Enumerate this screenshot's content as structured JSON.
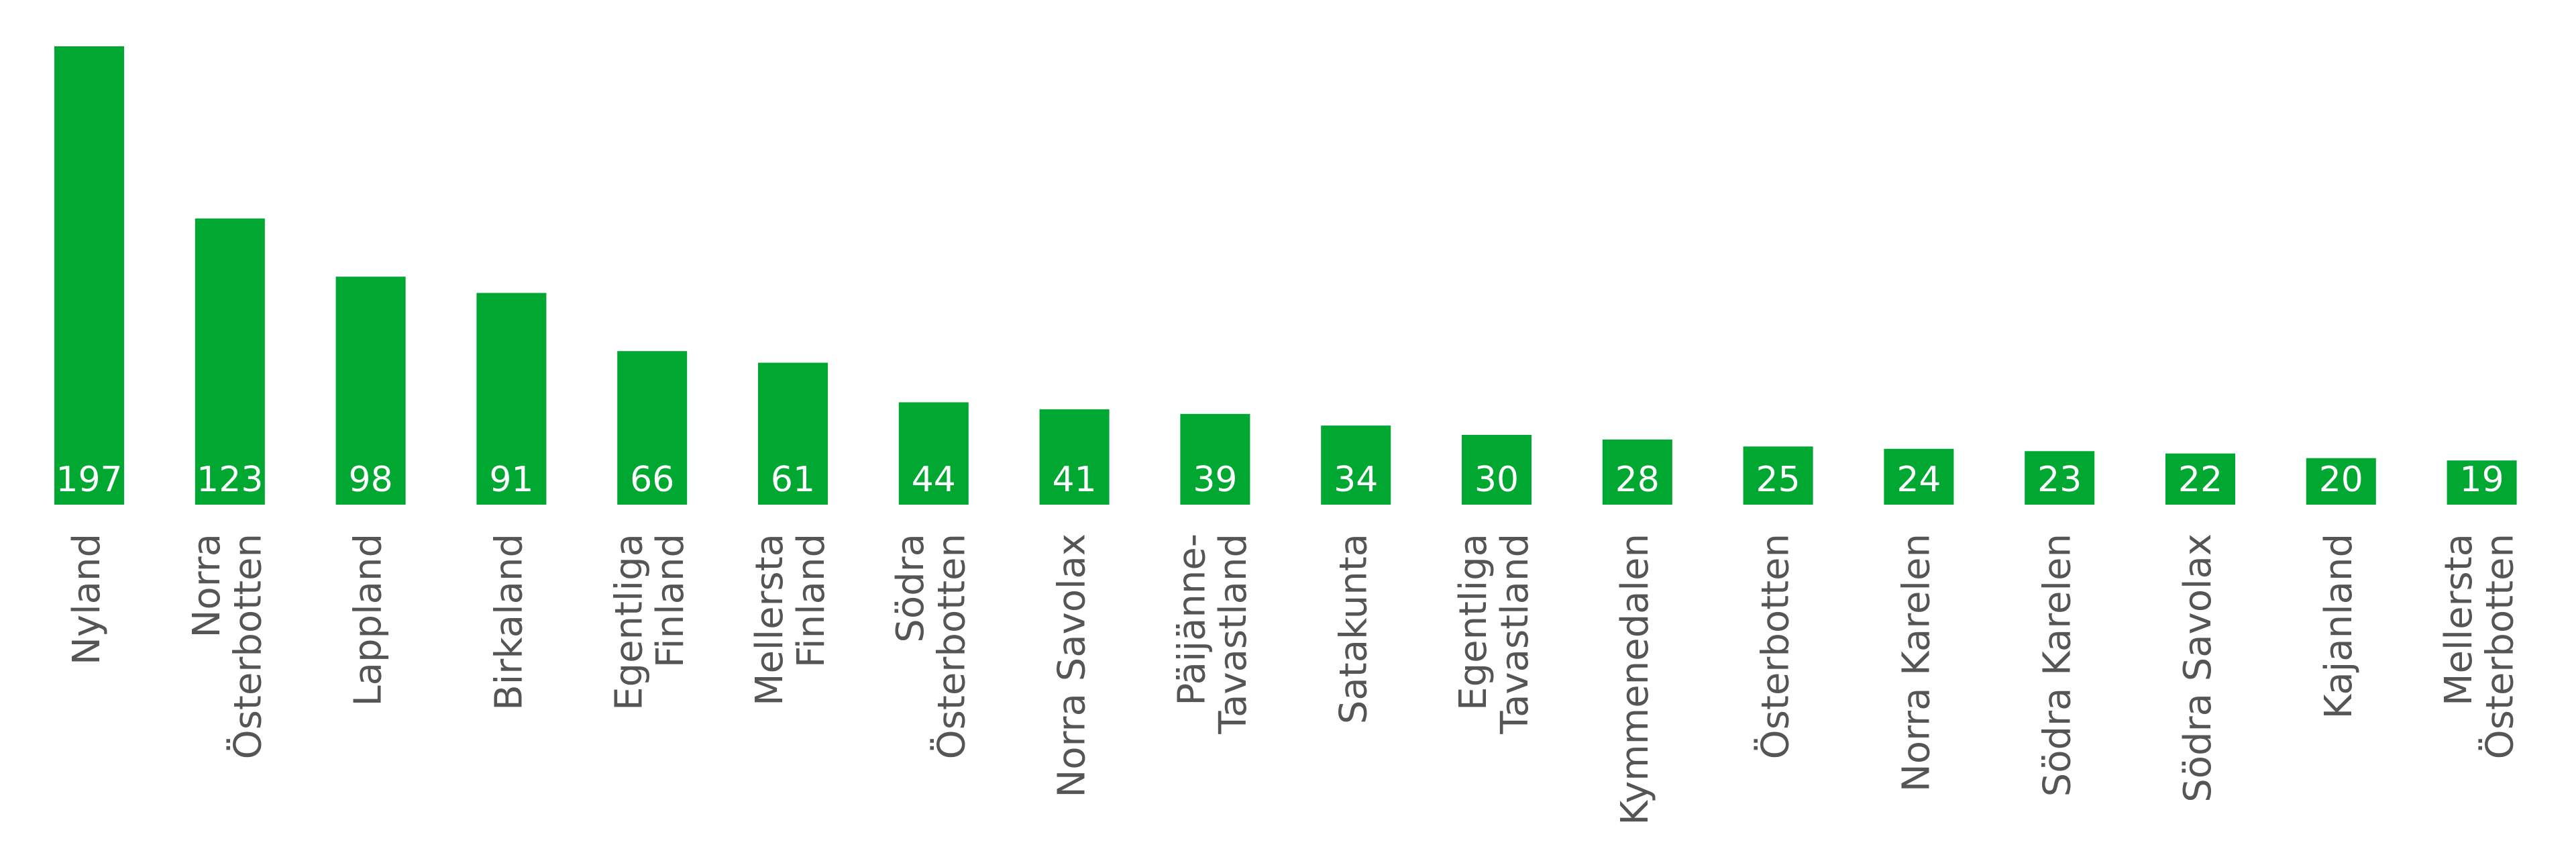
{
  "chart_data": {
    "type": "bar",
    "categories": [
      "Nyland",
      "Norra\nÖsterbotten",
      "Lappland",
      "Birkaland",
      "Egentliga\nFinland",
      "Mellersta\nFinland",
      "Södra\nÖsterbotten",
      "Norra Savolax",
      "Päijänne-\nTavastland",
      "Satakunta",
      "Egentliga\nTavastland",
      "Kymmenedalen",
      "Österbotten",
      "Norra Karelen",
      "Södra Karelen",
      "Södra Savolax",
      "Kajanland",
      "Mellersta\nÖsterbotten"
    ],
    "values": [
      197,
      123,
      98,
      91,
      66,
      61,
      44,
      41,
      39,
      34,
      30,
      28,
      25,
      24,
      23,
      22,
      20,
      19
    ],
    "color": "#00a832"
  }
}
